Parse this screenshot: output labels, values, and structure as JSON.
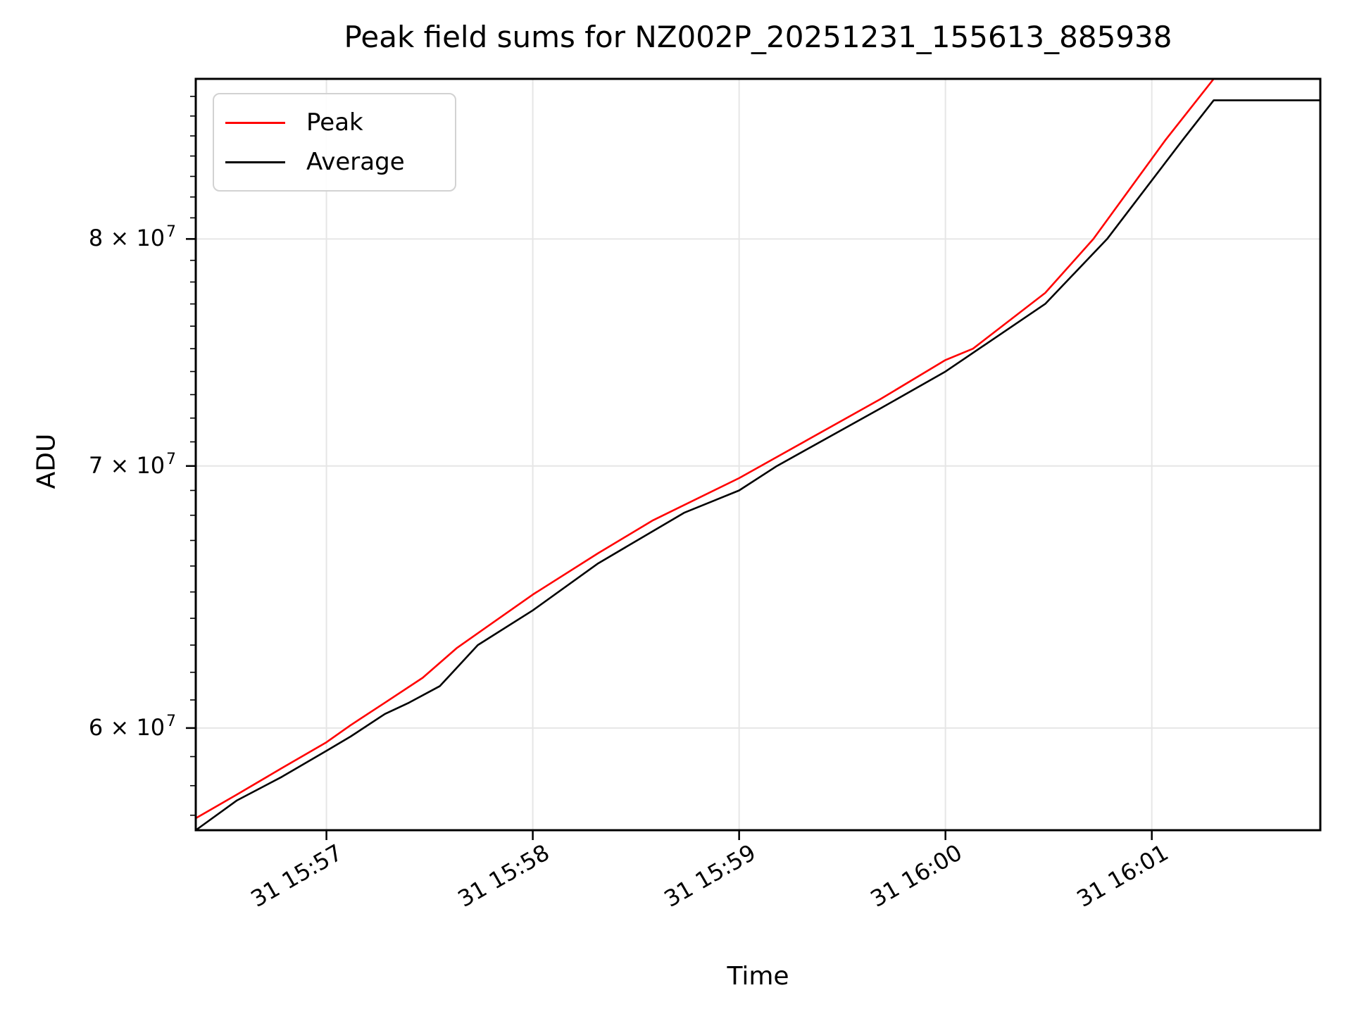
{
  "figure": {
    "background": "#ffffff",
    "spine_color": "#000000",
    "grid_color": "#e6e6e6"
  },
  "chart_data": {
    "type": "line",
    "title": "Peak field sums for NZ002P_20251231_155613_885938",
    "xlabel": "Time",
    "ylabel": "ADU",
    "y_scale": "log",
    "grid": true,
    "legend_position": "top-left",
    "y_range": [
      56500000,
      87900000
    ],
    "y_major_ticks": [
      {
        "value": 60000000,
        "label_base": "6 × 10",
        "label_exp": "7"
      },
      {
        "value": 70000000,
        "label_base": "7 × 10",
        "label_exp": "7"
      },
      {
        "value": 80000000,
        "label_base": "8 × 10",
        "label_exp": "7"
      }
    ],
    "y_minor_tick_step": 1000000,
    "x_range": [
      "15:56:22",
      "16:01:49"
    ],
    "x_ticks": [
      {
        "time": "15:57:00",
        "label": "31 15:57"
      },
      {
        "time": "15:58:00",
        "label": "31 15:58"
      },
      {
        "time": "15:59:00",
        "label": "31 15:59"
      },
      {
        "time": "16:00:00",
        "label": "31 16:00"
      },
      {
        "time": "16:01:00",
        "label": "31 16:01"
      }
    ],
    "series": [
      {
        "name": "Peak",
        "color": "#ff0000",
        "points": [
          [
            "15:56:22",
            56900000
          ],
          [
            "15:56:34",
            57700000
          ],
          [
            "15:56:47",
            58600000
          ],
          [
            "15:57:00",
            59500000
          ],
          [
            "15:57:07",
            60100000
          ],
          [
            "15:57:17",
            60900000
          ],
          [
            "15:57:28",
            61800000
          ],
          [
            "15:57:38",
            62900000
          ],
          [
            "15:58:00",
            64900000
          ],
          [
            "15:58:19",
            66500000
          ],
          [
            "15:58:35",
            67800000
          ],
          [
            "15:59:00",
            69500000
          ],
          [
            "15:59:41",
            72800000
          ],
          [
            "16:00:00",
            74500000
          ],
          [
            "16:00:08",
            75000000
          ],
          [
            "16:00:29",
            77500000
          ],
          [
            "16:00:43",
            80000000
          ],
          [
            "16:01:04",
            84800000
          ],
          [
            "16:01:18",
            87900000
          ],
          [
            "16:01:49",
            87900000
          ]
        ]
      },
      {
        "name": "Average",
        "color": "#000000",
        "points": [
          [
            "15:56:22",
            56500000
          ],
          [
            "15:56:34",
            57500000
          ],
          [
            "15:56:47",
            58300000
          ],
          [
            "15:57:00",
            59200000
          ],
          [
            "15:57:07",
            59700000
          ],
          [
            "15:57:17",
            60500000
          ],
          [
            "15:57:24",
            60900000
          ],
          [
            "15:57:33",
            61500000
          ],
          [
            "15:57:44",
            63000000
          ],
          [
            "15:58:00",
            64300000
          ],
          [
            "15:58:19",
            66100000
          ],
          [
            "15:58:44",
            68100000
          ],
          [
            "15:59:00",
            69000000
          ],
          [
            "15:59:11",
            70000000
          ],
          [
            "15:59:41",
            72400000
          ],
          [
            "16:00:00",
            74000000
          ],
          [
            "16:00:29",
            77000000
          ],
          [
            "16:00:47",
            80000000
          ],
          [
            "16:01:09",
            84800000
          ],
          [
            "16:01:18",
            86800000
          ],
          [
            "16:01:49",
            86800000
          ]
        ]
      }
    ]
  }
}
